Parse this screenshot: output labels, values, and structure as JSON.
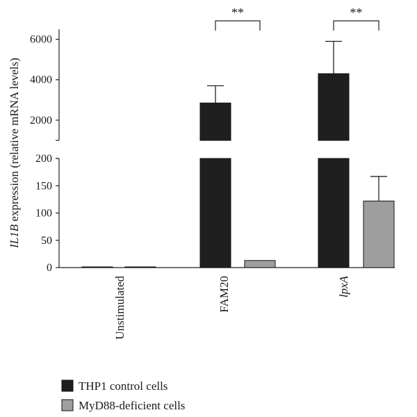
{
  "chart_data": {
    "type": "bar",
    "title": "",
    "xlabel": "",
    "ylabel": {
      "gene": "IL1B",
      "rest": " expression (relative mRNA levels)"
    },
    "categories": [
      "Unstimulated",
      "FAM20",
      "lpxA"
    ],
    "category_italic": [
      false,
      false,
      true
    ],
    "y_axis": {
      "scale": "broken",
      "lower_segment": {
        "range": [
          0,
          200
        ],
        "ticks": [
          0,
          50,
          100,
          150,
          200
        ]
      },
      "upper_segment": {
        "range": [
          1000,
          6500
        ],
        "ticks": [
          2000,
          4000,
          6000
        ]
      }
    },
    "series": [
      {
        "name": "THP1 control cells",
        "color": "#1f1f1f",
        "values": [
          1,
          2850,
          4300
        ],
        "errors": [
          0,
          850,
          1600
        ]
      },
      {
        "name": "MyD88-deficient cells",
        "color": "#9e9e9e",
        "values": [
          1,
          13,
          122
        ],
        "errors": [
          0,
          0,
          45
        ]
      }
    ],
    "significance": [
      {
        "category": "FAM20",
        "label": "**"
      },
      {
        "category": "lpxA",
        "label": "**"
      }
    ],
    "legend_position": "bottom-left",
    "grid": false
  }
}
